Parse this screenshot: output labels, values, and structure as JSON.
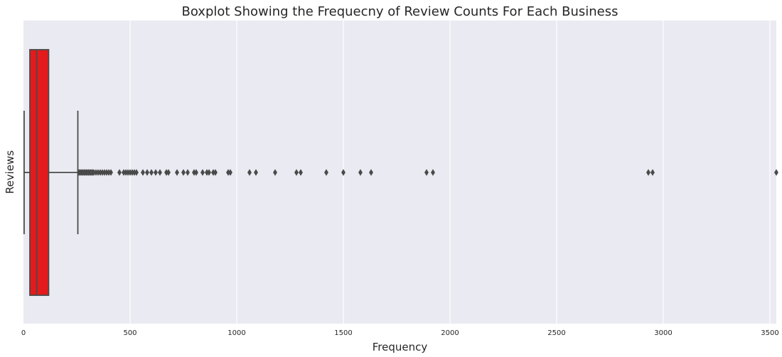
{
  "chart_data": {
    "type": "boxplot",
    "orientation": "horizontal",
    "title": "Boxplot Showing the Frequecny of Review Counts For Each Business",
    "xlabel": "Frequency",
    "ylabel": "Reviews",
    "xlim": [
      0,
      3530
    ],
    "x_ticks": [
      0,
      500,
      1000,
      1500,
      2000,
      2500,
      3000,
      3500
    ],
    "x_tick_labels": [
      "0",
      "500",
      "1000",
      "1500",
      "2000",
      "2500",
      "3000",
      "3500"
    ],
    "grid": true,
    "box": {
      "min": 3,
      "q1": 30,
      "median": 62,
      "q3": 118,
      "max": 255
    },
    "outliers": [
      260,
      265,
      270,
      275,
      280,
      285,
      290,
      295,
      300,
      305,
      310,
      315,
      320,
      325,
      330,
      340,
      350,
      360,
      370,
      380,
      390,
      400,
      410,
      450,
      470,
      480,
      490,
      500,
      510,
      520,
      530,
      560,
      580,
      600,
      620,
      640,
      670,
      680,
      720,
      750,
      770,
      800,
      810,
      840,
      860,
      870,
      890,
      900,
      960,
      970,
      1060,
      1090,
      1180,
      1280,
      1300,
      1420,
      1500,
      1580,
      1630,
      1890,
      1920,
      2930,
      2950,
      3530
    ],
    "colors": {
      "box_fill": "#e41a1c",
      "line": "#4a4a4a",
      "background": "#eaeaf2",
      "grid": "#ffffff",
      "text": "#262626"
    }
  }
}
